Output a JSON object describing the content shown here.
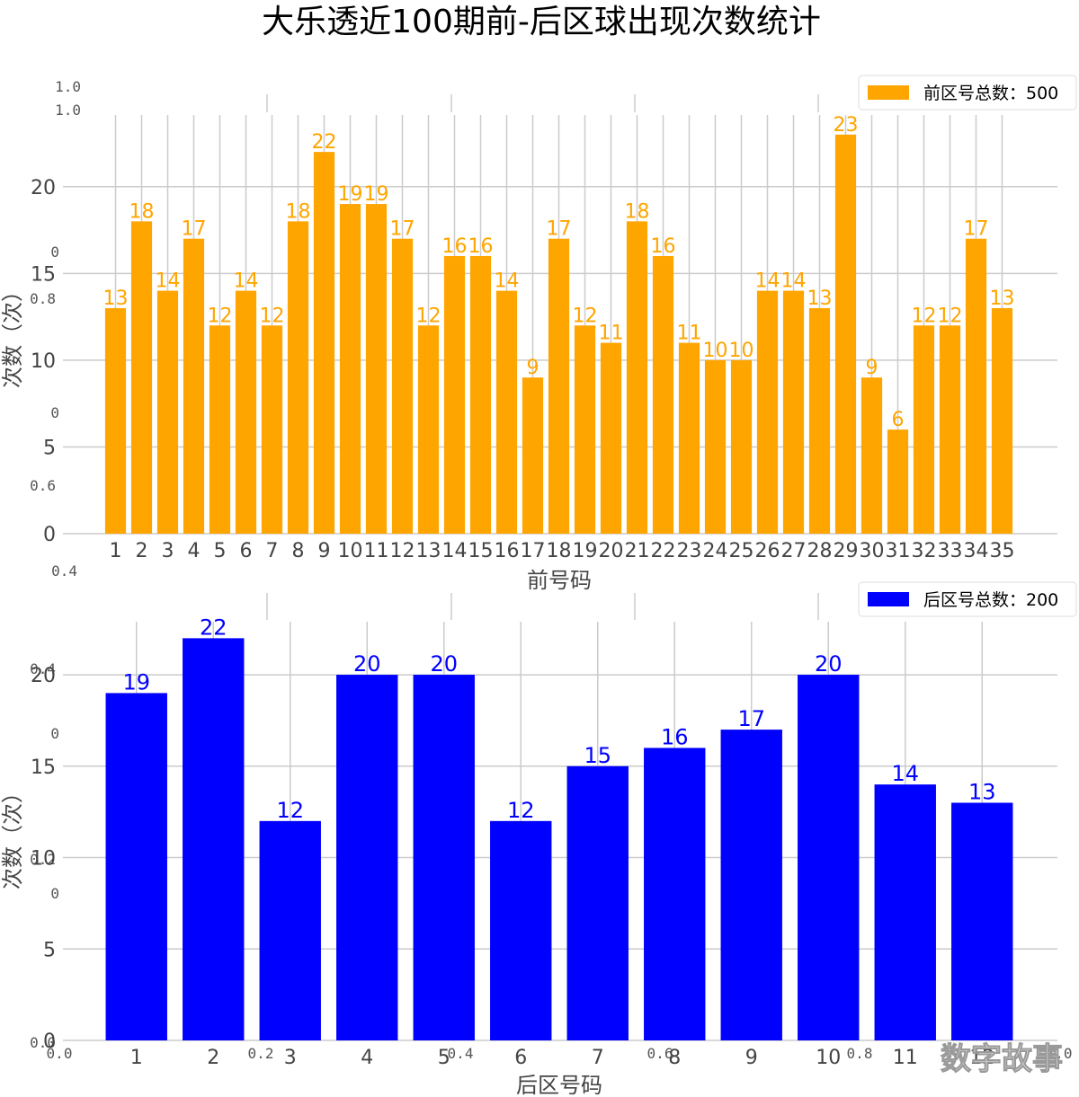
{
  "title": "大乐透近100期前-后区球出现次数统计",
  "watermark": "数字故事",
  "ghost_axis": {
    "top_labels": [
      "1.0",
      "1.0"
    ],
    "left_labels": [
      "0",
      "0.8",
      "0",
      "0.6",
      "0.4",
      "0.4",
      "0",
      "0.2",
      "0",
      "0.0"
    ],
    "bottom_labels": [
      "0.0",
      "0.2",
      "0.4",
      "0.6",
      "0.8",
      "1.0"
    ]
  },
  "chart_data": [
    {
      "type": "bar",
      "color": "#ffa500",
      "categories": [
        "1",
        "2",
        "3",
        "4",
        "5",
        "6",
        "7",
        "8",
        "9",
        "10",
        "11",
        "12",
        "13",
        "14",
        "15",
        "16",
        "17",
        "18",
        "19",
        "20",
        "21",
        "22",
        "23",
        "24",
        "25",
        "26",
        "27",
        "28",
        "29",
        "30",
        "31",
        "32",
        "33",
        "34",
        "35"
      ],
      "values": [
        13,
        18,
        14,
        17,
        12,
        14,
        12,
        18,
        22,
        19,
        19,
        17,
        12,
        16,
        16,
        14,
        9,
        17,
        12,
        11,
        18,
        16,
        11,
        10,
        10,
        14,
        14,
        13,
        23,
        9,
        6,
        12,
        12,
        17,
        13
      ],
      "xlabel": "前号码",
      "ylabel": "次数（次）",
      "yticks": [
        0,
        5,
        10,
        15,
        20
      ],
      "ylim": [
        0,
        24
      ],
      "grid": true,
      "legend": {
        "label": "前区号总数：500",
        "position": "top-right"
      }
    },
    {
      "type": "bar",
      "color": "#0000ff",
      "categories": [
        "1",
        "2",
        "3",
        "4",
        "5",
        "6",
        "7",
        "8",
        "9",
        "10",
        "11",
        "12"
      ],
      "values": [
        19,
        22,
        12,
        20,
        20,
        12,
        15,
        16,
        17,
        20,
        14,
        13
      ],
      "xlabel": "后区号码",
      "ylabel": "次数（次）",
      "yticks": [
        0,
        5,
        10,
        15,
        20
      ],
      "ylim": [
        0,
        22.5
      ],
      "grid": true,
      "legend": {
        "label": "后区号总数：200",
        "position": "top-right"
      }
    }
  ]
}
